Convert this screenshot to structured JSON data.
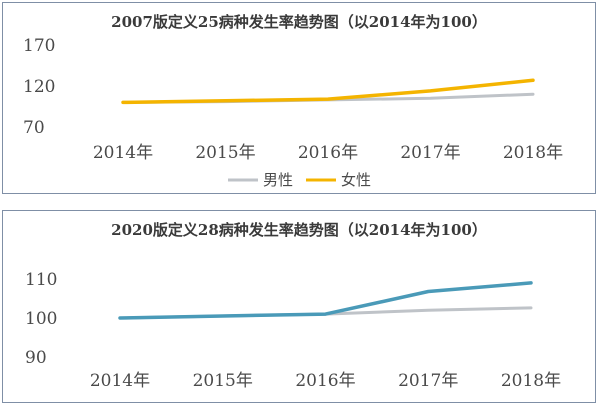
{
  "chart_data": [
    {
      "type": "line",
      "title": "2007版定义25病种发生率趋势图（以2014年为100）",
      "categories": [
        "2014年",
        "2015年",
        "2016年",
        "2017年",
        "2018年"
      ],
      "yticks": [
        "170",
        "120",
        "70"
      ],
      "ylim": [
        70,
        170
      ],
      "grid": false,
      "legend": "bottom",
      "series": [
        {
          "name": "男性",
          "color": "#bfc3c8",
          "values": [
            100,
            101,
            103,
            105,
            110
          ]
        },
        {
          "name": "女性",
          "color": "#f4b400",
          "values": [
            100,
            102,
            104,
            114,
            127
          ]
        }
      ]
    },
    {
      "type": "line",
      "title": "2020版定义28病种发生率趋势图（以2014年为100）",
      "categories": [
        "2014年",
        "2015年",
        "2016年",
        "2017年",
        "2018年"
      ],
      "yticks": [
        "110",
        "100",
        "90"
      ],
      "ylim": [
        90,
        110
      ],
      "grid": false,
      "legend": "none",
      "series": [
        {
          "color": "#bfc3c8",
          "values": [
            100,
            100.5,
            101,
            102,
            102.6
          ]
        },
        {
          "color": "#4a9ab8",
          "values": [
            100,
            100.5,
            101,
            106.8,
            109
          ]
        }
      ]
    }
  ]
}
